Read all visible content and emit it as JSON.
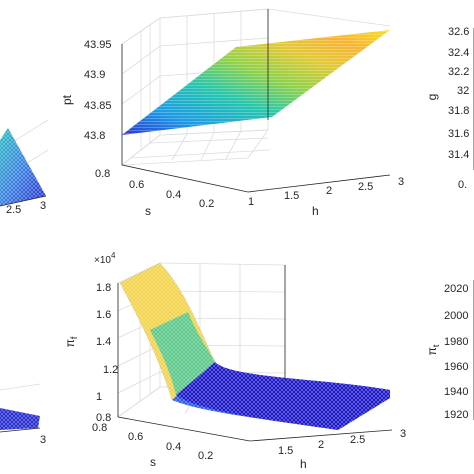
{
  "figure": {
    "title": ""
  },
  "chart_data": [
    {
      "id": "left-top-partial",
      "type": "surface",
      "xlabel": "",
      "ylabel": "",
      "zlabel": "",
      "x_ticks": [
        "2.5",
        "3"
      ],
      "y_ticks": [],
      "z_ticks": [],
      "colormap": [
        "#2a2bd0",
        "#3a7fe0",
        "#29c0c0"
      ]
    },
    {
      "id": "center-top",
      "type": "surface",
      "xlabel": "h",
      "ylabel": "s",
      "zlabel": "pt",
      "x_ticks": [
        "1",
        "1.5",
        "2",
        "2.5",
        "3"
      ],
      "y_ticks": [
        "0.2",
        "0.4",
        "0.6",
        "0.8"
      ],
      "z_ticks": [
        "43.8",
        "43.85",
        "43.9",
        "43.95"
      ],
      "xlim": [
        1,
        3
      ],
      "ylim": [
        0.1,
        0.8
      ],
      "zlim": [
        43.78,
        43.98
      ],
      "surface": {
        "z_at_h1": 43.8,
        "z_at_h3": 43.96,
        "depends_on": "h"
      },
      "colormap": [
        "#2f3fe0",
        "#20a0e8",
        "#26c8a8",
        "#7ed24a",
        "#d8c838",
        "#fcb030",
        "#f8e020"
      ]
    },
    {
      "id": "right-top-partial",
      "type": "surface",
      "zlabel": "g",
      "z_ticks": [
        "31.4",
        "31.6",
        "31.8",
        "32",
        "32.2",
        "32.4",
        "32.6"
      ],
      "other_ticks": [
        "0."
      ]
    },
    {
      "id": "left-bottom-partial",
      "type": "surface",
      "x_ticks": [
        "3"
      ],
      "colormap": [
        "#2a2bd0",
        "#3a7fe0"
      ]
    },
    {
      "id": "center-bottom",
      "type": "surface",
      "xlabel": "h",
      "ylabel": "s",
      "zlabel": "π f",
      "zlabel_symbol": "π",
      "zlabel_subscript": "f",
      "scale_label": "×10",
      "scale_exponent": "4",
      "x_ticks": [
        "1.5",
        "2",
        "2.5",
        "3"
      ],
      "y_ticks": [
        "0.2",
        "0.4",
        "0.6",
        "0.8"
      ],
      "z_ticks": [
        "0.8",
        "1",
        "1.2",
        "1.4",
        "1.6",
        "1.8"
      ],
      "xlim": [
        1,
        3
      ],
      "ylim": [
        0.1,
        0.8
      ],
      "zlim": [
        0.78,
        1.85
      ],
      "surface": {
        "z_peak": 1.85,
        "z_floor": 0.8,
        "shape": "decays with h, steep near h=1"
      },
      "colormap": [
        "#1a10c8",
        "#2050f0",
        "#20a0e8",
        "#28c8b0",
        "#90d448",
        "#e8d83a",
        "#fbe060"
      ]
    },
    {
      "id": "right-bottom-partial",
      "type": "surface",
      "zlabel": "π t",
      "zlabel_symbol": "π",
      "zlabel_subscript": "t",
      "z_ticks": [
        "1920",
        "1940",
        "1960",
        "1980",
        "2000",
        "2020"
      ]
    }
  ]
}
